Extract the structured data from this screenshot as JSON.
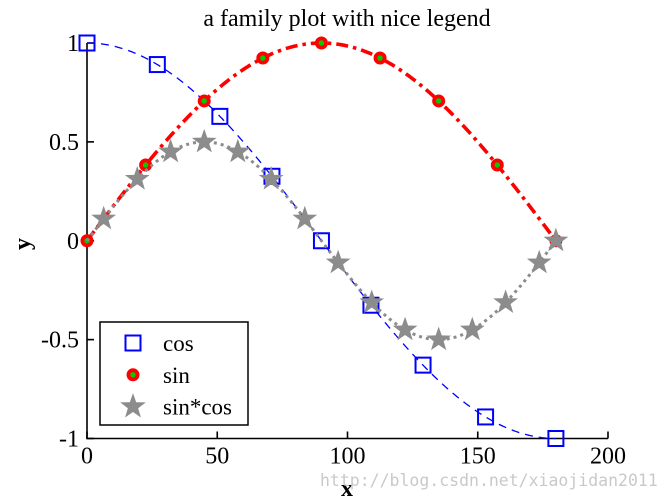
{
  "watermark": "http://blog.csdn.net/xiaojidan2011",
  "watermark_color": "#c9c9c9",
  "axes_color": "#000000",
  "chart_data": {
    "type": "line",
    "title": "a family plot with nice legend",
    "xlabel": "x",
    "ylabel": "y",
    "xlim": [
      0,
      200
    ],
    "ylim": [
      -1,
      1
    ],
    "xticks": [
      0,
      50,
      100,
      150,
      200
    ],
    "yticks": [
      1,
      0.5,
      0,
      -0.5,
      -1
    ],
    "grid": false,
    "legend": {
      "position": "lower-left-inside",
      "border_color": "#000000",
      "background": "#ffffff",
      "entries": [
        "cos",
        "sin",
        "sin*cos"
      ]
    },
    "series": [
      {
        "name": "cos",
        "formula": "cos",
        "x_domain": [
          0,
          180
        ],
        "color": "#0000ff",
        "line_style": "dashed",
        "line_width": 1.3,
        "marker": "open-square",
        "marker_size": 15,
        "marker_edge": "#0000ff",
        "marker_face": "none",
        "marker_points": [
          [
            0,
            1
          ],
          [
            27,
            0.891
          ],
          [
            51,
            0.629
          ],
          [
            71,
            0.326
          ],
          [
            90,
            0
          ],
          [
            109,
            -0.326
          ],
          [
            129,
            -0.629
          ],
          [
            153,
            -0.891
          ],
          [
            180,
            -1
          ]
        ]
      },
      {
        "name": "sin",
        "formula": "sin",
        "x_domain": [
          0,
          180
        ],
        "color": "#ff0000",
        "line_style": "dashdot",
        "line_width": 3.6,
        "marker": "circle",
        "marker_size": 13,
        "marker_edge": "#ff0000",
        "marker_face": "#00cc00",
        "marker_points": [
          [
            0,
            0
          ],
          [
            22.5,
            0.383
          ],
          [
            45,
            0.707
          ],
          [
            67.5,
            0.924
          ],
          [
            90,
            1
          ],
          [
            112.5,
            0.924
          ],
          [
            135,
            0.707
          ],
          [
            157.5,
            0.383
          ],
          [
            180,
            0
          ]
        ]
      },
      {
        "name": "sin*cos",
        "formula": "sin*cos",
        "x_domain": [
          0,
          180
        ],
        "color": "#8c8c8c",
        "line_style": "dotted",
        "line_width": 3,
        "marker": "star",
        "marker_size": 26,
        "marker_edge": "#8c8c8c",
        "marker_face": "#8c8c8c",
        "marker_points": [
          [
            6.4,
            0.111
          ],
          [
            19.3,
            0.312
          ],
          [
            32.1,
            0.45
          ],
          [
            45,
            0.5
          ],
          [
            57.9,
            0.45
          ],
          [
            70.7,
            0.312
          ],
          [
            83.6,
            0.111
          ],
          [
            96.4,
            -0.111
          ],
          [
            109.3,
            -0.312
          ],
          [
            122.1,
            -0.45
          ],
          [
            135,
            -0.5
          ],
          [
            147.9,
            -0.45
          ],
          [
            160.7,
            -0.312
          ],
          [
            173.6,
            -0.111
          ],
          [
            180,
            0
          ]
        ]
      }
    ]
  }
}
